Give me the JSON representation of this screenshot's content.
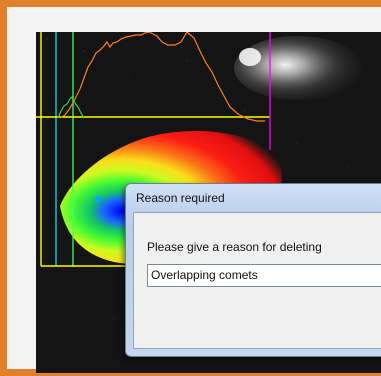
{
  "colors": {
    "frame_accent": "#e07f2c",
    "histogram_x": "#ff7f1f",
    "histogram_y": "#41d63f",
    "marker_lines": "#ffff00",
    "marker_magenta": "#ff00ff"
  },
  "dialog": {
    "title": "Reason required",
    "prompt": "Please give a reason for deleting",
    "reason_value": "Overlapping comets"
  }
}
